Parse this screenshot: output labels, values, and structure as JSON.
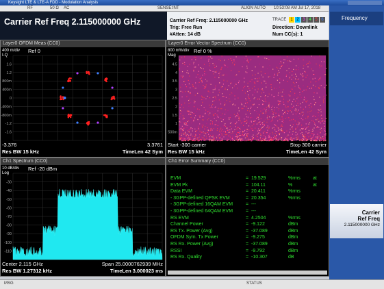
{
  "window_title": "Keysight LTE & LTE-A FDD - Modulation Analysis",
  "status_bar": {
    "rf": "RF",
    "impedance": "50 Ω",
    "coupling": "AC",
    "sense": "SENSE:INT",
    "align": "ALIGN AUTO",
    "datetime": "10:53:08 AM Jul 17, 2018"
  },
  "header": {
    "title": "Carrier Ref Freq 2.115000000 GHz",
    "carrier": "Carrier Ref Freq: 2.115000000 GHz",
    "trig": "Trig: Free Run",
    "atten": "#Atten: 14 dB",
    "trace_label": "TRACE",
    "traces": [
      "1",
      "2",
      "3",
      "4",
      "5",
      "6"
    ],
    "direction": "Direction: Downlink",
    "num_cc": "Num CC(s): 1"
  },
  "softkeys": {
    "menu": "Frequency",
    "key1": {
      "line1": "Carrier",
      "line2": "Ref Freq",
      "value": "2.115000000 GHz"
    }
  },
  "panels": [
    {
      "title": "Layer0 OFDM Meas (CC0)",
      "scale": "400 m/div",
      "ref": "Ref 0",
      "unit": "I-Q",
      "y_labels": [
        "1.6",
        "1.2",
        "800m",
        "400m",
        "0",
        "-400m",
        "-800m",
        "-1.2",
        "-1.6"
      ],
      "footer": [
        "-3.376",
        "3.3761",
        "Res BW 15 kHz",
        "TimeLen 42  Sym"
      ]
    },
    {
      "title": "Layer0 Error Vector Spectrum (CC0)",
      "scale": "800 m%/div",
      "ref": "Ref 0 %",
      "unit": "Mag",
      "y_labels": [
        "4.5",
        "4",
        "3.5",
        "3",
        "2.5",
        "2",
        "1.5",
        "1",
        "500m"
      ],
      "footer": [
        "Start -300  carrier",
        "Stop 300  carrier",
        "Res BW 15 kHz",
        "TimeLen 42  Sym"
      ]
    },
    {
      "title": "Ch1 Spectrum (CC0)",
      "scale": "10 dB/div",
      "ref": "Ref -20 dBm",
      "unit": "Log",
      "y_labels": [
        "-30",
        "-40",
        "-50",
        "-60",
        "-70",
        "-80",
        "-90",
        "-100",
        "-110"
      ],
      "footer": [
        "Center 2.115 GHz",
        "Span 25.0000762939 MHz",
        "Res BW 1.27312 kHz",
        "TimeLen 3.000023 ms"
      ]
    }
  ],
  "error_summary": {
    "title": "Ch1 Error Summary (CC0)",
    "equals": "=",
    "rows": [
      [
        "EVM",
        "19.529",
        "%rms",
        "at"
      ],
      [
        "EVM Pk",
        "104.11",
        "%",
        "at"
      ],
      [
        "Data EVM",
        "20.411",
        "%rms"
      ],
      [
        " - 3GPP-defined QPSK EVM",
        "20.354",
        "%rms"
      ],
      [
        " - 3GPP-defined 16QAM EVM",
        "---"
      ],
      [
        " - 3GPP-defined 64QAM EVM",
        "---"
      ],
      [
        "RS EVM",
        "4.2504",
        "%rms"
      ],
      [
        "Channel Power",
        "-9.122",
        "dBm"
      ],
      [
        "RS Tx. Power (Avg)",
        "-37.089",
        "dBm"
      ],
      [
        "OFDM Sym. Tx Power",
        "-9.275",
        "dBm"
      ],
      [
        "RS Rx. Power (Avg)",
        "-37.089",
        "dBm"
      ],
      [
        "RSSI",
        "-9.792",
        "dBm"
      ],
      [
        "RS Rx. Quality",
        "-10.307",
        "dB"
      ]
    ]
  },
  "footer": {
    "msg": "MSG",
    "status": "STATUS"
  }
}
